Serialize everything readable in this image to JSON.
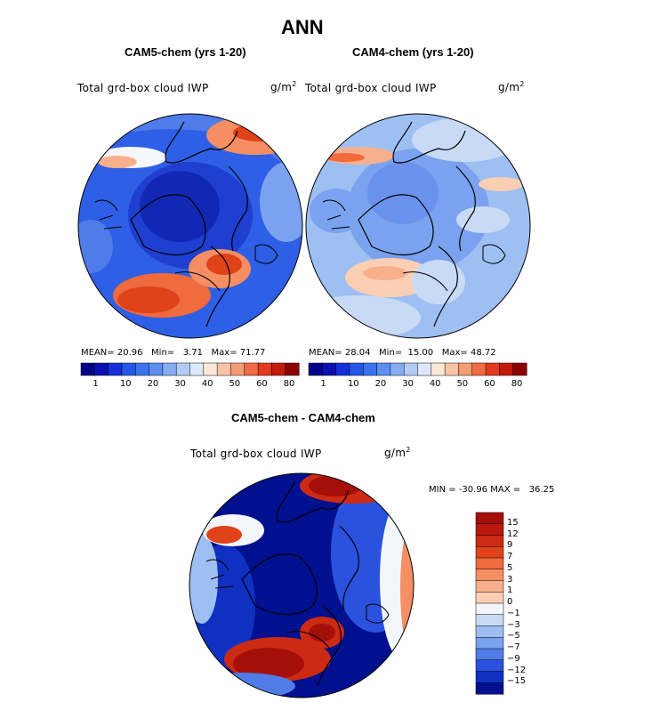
{
  "figure": {
    "title": "ANN",
    "colors": {
      "ocean_line": "#000000",
      "seq_scale": [
        "#00008b",
        "#0a10b0",
        "#1530d8",
        "#2456e8",
        "#3b72ee",
        "#5c8ff0",
        "#86acf2",
        "#b3cbf6",
        "#dde9fb",
        "#fde7d8",
        "#f9c4a6",
        "#f59c75",
        "#ef6a45",
        "#e23a1f",
        "#c01a0c",
        "#8b0000"
      ]
    }
  },
  "panels": [
    {
      "id": "cam5",
      "title": "CAM5-chem (yrs 1-20)",
      "variable": "Total grd-box cloud IWP",
      "units_base": "g/m",
      "units_exp": "2",
      "stats": {
        "mean_label": "MEAN=",
        "mean": "20.96",
        "min_label": "Min=",
        "min": "3.71",
        "max_label": "Max=",
        "max": "71.77"
      },
      "colorbar_ticks": [
        "1",
        "10",
        "20",
        "30",
        "40",
        "50",
        "60",
        "80"
      ]
    },
    {
      "id": "cam4",
      "title": "CAM4-chem (yrs 1-20)",
      "variable": "Total grd-box cloud IWP",
      "units_base": "g/m",
      "units_exp": "2",
      "stats": {
        "mean_label": "MEAN=",
        "mean": "28.04",
        "min_label": "Min=",
        "min": "15.00",
        "max_label": "Max=",
        "max": "48.72"
      },
      "colorbar_ticks": [
        "1",
        "10",
        "20",
        "30",
        "40",
        "50",
        "60",
        "80"
      ]
    }
  ],
  "difference": {
    "title": "CAM5-chem - CAM4-chem",
    "variable": "Total grd-box cloud IWP",
    "units_base": "g/m",
    "units_exp": "2",
    "min_label": "MIN =",
    "min": "-30.96",
    "max_label": "MAX =",
    "max": "36.25",
    "colorbar_ticks": [
      "15",
      "12",
      "9",
      "7",
      "5",
      "3",
      "1",
      "0",
      "−1",
      "−3",
      "−5",
      "−7",
      "−9",
      "−12",
      "−15"
    ],
    "colorbar_colors": [
      "#a50f0a",
      "#b8180e",
      "#cc2a12",
      "#e0421a",
      "#ef6a3c",
      "#f58f63",
      "#f8b08c",
      "#fbcfb4",
      "#f3f7fd",
      "#c8daf6",
      "#9ebff1",
      "#7aa2ee",
      "#4f7ce9",
      "#2a52de",
      "#1030c2",
      "#00108f"
    ]
  }
}
